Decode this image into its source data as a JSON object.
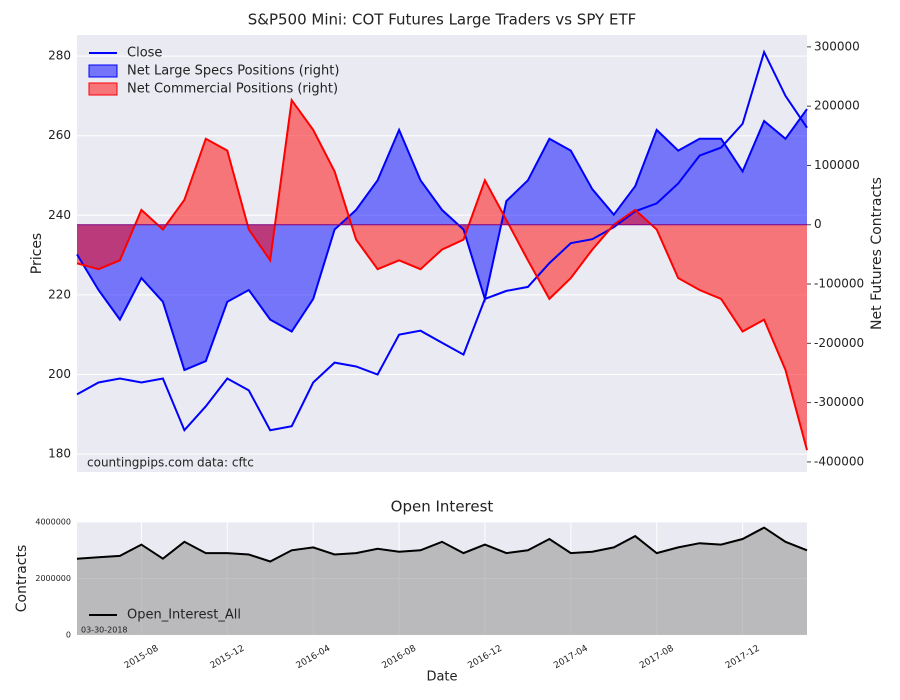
{
  "chart_data": [
    {
      "type": "line",
      "title": "S&P500 Mini: COT Futures Large Traders vs SPY ETF",
      "ylabel": "Prices",
      "y2label": "Net Futures Contracts",
      "annotations": [
        "countingpips.com",
        "data: cftc"
      ],
      "x": [
        "2015-05",
        "2015-06",
        "2015-07",
        "2015-08",
        "2015-09",
        "2015-10",
        "2015-11",
        "2015-12",
        "2016-01",
        "2016-02",
        "2016-03",
        "2016-04",
        "2016-05",
        "2016-06",
        "2016-07",
        "2016-08",
        "2016-09",
        "2016-10",
        "2016-11",
        "2016-12",
        "2017-01",
        "2017-02",
        "2017-03",
        "2017-04",
        "2017-05",
        "2017-06",
        "2017-07",
        "2017-08",
        "2017-09",
        "2017-10",
        "2017-11",
        "2017-12",
        "2018-01",
        "2018-02",
        "2018-03"
      ],
      "xlim": [
        "2015-05",
        "2018-03"
      ],
      "series": [
        {
          "name": "Close",
          "color": "#0000ff",
          "fill": false,
          "values": [
            195,
            198,
            199,
            198,
            199,
            186,
            192,
            199,
            196,
            186,
            187,
            198,
            203,
            202,
            200,
            210,
            211,
            208,
            205,
            219,
            221,
            222,
            228,
            233,
            234,
            237,
            241,
            243,
            248,
            255,
            257,
            263,
            281,
            270,
            262
          ]
        },
        {
          "name": "Net Large Specs Positions (right)",
          "color": "#0000ff",
          "axis": "y2",
          "fill": true,
          "values": [
            -50000,
            -110000,
            -160000,
            -90000,
            -130000,
            -245000,
            -230000,
            -130000,
            -110000,
            -160000,
            -180000,
            -125000,
            -8000,
            25000,
            75000,
            160000,
            75000,
            25000,
            -8000,
            -125000,
            40000,
            75000,
            145000,
            125000,
            60000,
            17000,
            65000,
            160000,
            125000,
            145000,
            145000,
            90000,
            175000,
            145000,
            195000
          ]
        },
        {
          "name": "Net Commercial Positions (right)",
          "color": "#ff0000",
          "axis": "y2",
          "fill": true,
          "values": [
            -65000,
            -75000,
            -60000,
            25000,
            -8000,
            42000,
            145000,
            125000,
            -8000,
            -60000,
            210000,
            160000,
            90000,
            -25000,
            -75000,
            -60000,
            -75000,
            -42000,
            -25000,
            75000,
            8000,
            -60000,
            -125000,
            -90000,
            -42000,
            0,
            25000,
            -8000,
            -90000,
            -110000,
            -125000,
            -180000,
            -160000,
            -245000,
            -380000
          ]
        }
      ],
      "ylim": [
        175.5,
        285.3
      ],
      "yticks": [
        180,
        200,
        220,
        240,
        260,
        280
      ],
      "y2lim": [
        -417000,
        320000
      ],
      "y2ticks": [
        -400000,
        -300000,
        -200000,
        -100000,
        0,
        100000,
        200000,
        300000
      ],
      "grid": true,
      "legend": "upper left"
    },
    {
      "type": "area",
      "title": "Open Interest",
      "xlabel": "Date",
      "ylabel": "Contracts",
      "annotations": [
        "03-30-2018"
      ],
      "x": [
        "2015-05",
        "2015-06",
        "2015-07",
        "2015-08",
        "2015-09",
        "2015-10",
        "2015-11",
        "2015-12",
        "2016-01",
        "2016-02",
        "2016-03",
        "2016-04",
        "2016-05",
        "2016-06",
        "2016-07",
        "2016-08",
        "2016-09",
        "2016-10",
        "2016-11",
        "2016-12",
        "2017-01",
        "2017-02",
        "2017-03",
        "2017-04",
        "2017-05",
        "2017-06",
        "2017-07",
        "2017-08",
        "2017-09",
        "2017-10",
        "2017-11",
        "2017-12",
        "2018-01",
        "2018-02",
        "2018-03"
      ],
      "xlim": [
        "2015-05",
        "2018-03"
      ],
      "xticks": [
        "2015-08",
        "2015-12",
        "2016-04",
        "2016-08",
        "2016-12",
        "2017-04",
        "2017-08",
        "2017-12"
      ],
      "series": [
        {
          "name": "Open_Interest_All",
          "color": "#000000",
          "fill": true,
          "values": [
            2700000,
            2750000,
            2800000,
            3200000,
            2700000,
            3300000,
            2900000,
            2900000,
            2850000,
            2600000,
            3000000,
            3100000,
            2850000,
            2900000,
            3050000,
            2950000,
            3000000,
            3300000,
            2900000,
            3200000,
            2900000,
            3000000,
            3400000,
            2900000,
            2950000,
            3100000,
            3500000,
            2900000,
            3100000,
            3250000,
            3200000,
            3400000,
            3800000,
            3300000,
            3000000
          ]
        }
      ],
      "ylim": [
        0,
        4000000
      ],
      "yticks": [
        0,
        2000000,
        4000000
      ],
      "grid": true,
      "legend": "lower left"
    }
  ]
}
